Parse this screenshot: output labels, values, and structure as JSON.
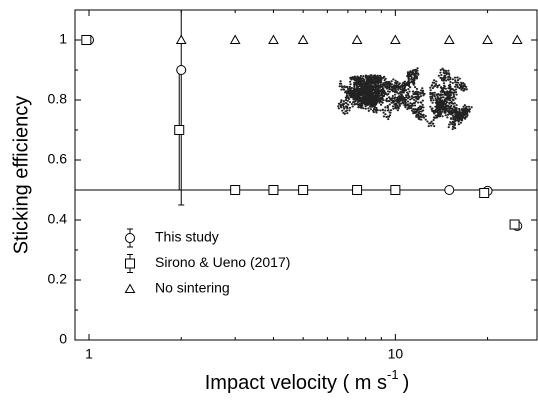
{
  "chart_data": {
    "type": "scatter",
    "xlabel": {
      "text": "Impact velocity ( m s",
      "superscript": "-1",
      "suffix": ")"
    },
    "ylabel": "Sticking efficiency",
    "xlim": [
      0.9,
      29
    ],
    "ylim": [
      0,
      1.1
    ],
    "xticks": [
      1,
      10
    ],
    "yticks": [
      0,
      0.2,
      0.4,
      0.6,
      0.8,
      1
    ],
    "xscale": "log",
    "hline": 0.5,
    "legend": "lower left",
    "series": [
      {
        "name": "This study",
        "marker": "circle",
        "color": "#000000",
        "x": [
          1,
          2,
          3,
          4,
          5,
          7.5,
          10,
          15,
          20,
          25
        ],
        "values": [
          1,
          0.9,
          0.5,
          0.5,
          0.5,
          0.5,
          0.5,
          0.5,
          0.497,
          0.38
        ],
        "errors": [
          null,
          0.45,
          null,
          null,
          null,
          null,
          null,
          null,
          null,
          null
        ]
      },
      {
        "name": "Sirono & Ueno (2017)",
        "marker": "square",
        "color": "#000000",
        "x": [
          0.98,
          1.97,
          3,
          4,
          5,
          7.5,
          10,
          19.5,
          24.5
        ],
        "values": [
          1,
          0.7,
          0.5,
          0.5,
          0.5,
          0.5,
          0.5,
          0.49,
          0.385
        ],
        "errors": [
          null,
          0.2,
          null,
          null,
          null,
          null,
          null,
          null,
          null
        ]
      },
      {
        "name": "No sintering",
        "marker": "triangle",
        "color": "#000000",
        "x": [
          2,
          3,
          4,
          5,
          7.5,
          10,
          15,
          20,
          25
        ],
        "values": [
          1,
          1,
          1,
          1,
          1,
          1,
          1,
          1,
          1
        ]
      }
    ]
  }
}
